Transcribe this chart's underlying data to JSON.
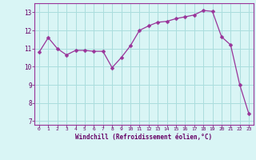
{
  "x": [
    0,
    1,
    2,
    3,
    4,
    5,
    6,
    7,
    8,
    9,
    10,
    11,
    12,
    13,
    14,
    15,
    16,
    17,
    18,
    19,
    20,
    21,
    22,
    23
  ],
  "y": [
    10.8,
    11.6,
    11.0,
    10.65,
    10.9,
    10.9,
    10.85,
    10.85,
    9.95,
    10.5,
    11.15,
    12.0,
    12.25,
    12.45,
    12.5,
    12.65,
    12.75,
    12.85,
    13.1,
    13.05,
    11.65,
    11.2,
    9.0,
    7.4
  ],
  "line_color": "#993399",
  "marker": "D",
  "marker_size": 2.5,
  "bg_color": "#d9f5f5",
  "grid_color": "#aadddd",
  "xlabel": "Windchill (Refroidissement éolien,°C)",
  "xlabel_color": "#660066",
  "tick_color": "#660066",
  "xlim": [
    -0.5,
    23.5
  ],
  "ylim": [
    6.8,
    13.5
  ],
  "yticks": [
    7,
    8,
    9,
    10,
    11,
    12,
    13
  ],
  "xticks": [
    0,
    1,
    2,
    3,
    4,
    5,
    6,
    7,
    8,
    9,
    10,
    11,
    12,
    13,
    14,
    15,
    16,
    17,
    18,
    19,
    20,
    21,
    22,
    23
  ],
  "spine_color": "#993399",
  "title_color": "#660066"
}
